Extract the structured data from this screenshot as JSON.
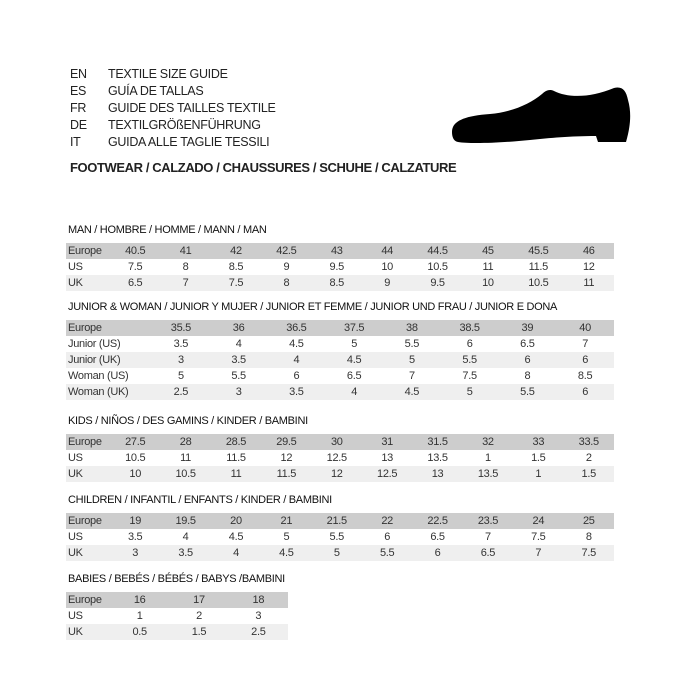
{
  "languages": [
    {
      "code": "EN",
      "title": "TEXTILE SIZE GUIDE"
    },
    {
      "code": "ES",
      "title": "GUÍA DE TALLAS"
    },
    {
      "code": "FR",
      "title": "GUIDE DES TAILLES TEXTILE"
    },
    {
      "code": "DE",
      "title": "TEXTILGRÖßENFÜHRUNG"
    },
    {
      "code": "IT",
      "title": "GUIDA ALLE TAGLIE TESSILI"
    }
  ],
  "subtitle": "FOOTWEAR / CALZADO / CHAUSSURES / SCHUHE / CALZATURE",
  "shoe_icon": "shoe-icon",
  "colors": {
    "header_row": "#cdcdcd",
    "alt_row": "#efefef"
  },
  "tables": [
    {
      "title": "MAN / HOMBRE / HOMME / MANN / MAN",
      "rows": [
        {
          "label": "Europe",
          "values": [
            "40.5",
            "41",
            "42",
            "42.5",
            "43",
            "44",
            "44.5",
            "45",
            "45.5",
            "46"
          ]
        },
        {
          "label": "US",
          "values": [
            "7.5",
            "8",
            "8.5",
            "9",
            "9.5",
            "10",
            "10.5",
            "11",
            "11.5",
            "12"
          ]
        },
        {
          "label": "UK",
          "values": [
            "6.5",
            "7",
            "7.5",
            "8",
            "8.5",
            "9",
            "9.5",
            "10",
            "10.5",
            "11"
          ]
        }
      ]
    },
    {
      "title": "JUNIOR & WOMAN / JUNIOR Y MUJER / JUNIOR ET FEMME / JUNIOR UND FRAU / JUNIOR E DONA",
      "rows": [
        {
          "label": "Europe",
          "values": [
            "35.5",
            "36",
            "36.5",
            "37.5",
            "38",
            "38.5",
            "39",
            "40"
          ]
        },
        {
          "label": "Junior (US)",
          "values": [
            "3.5",
            "4",
            "4.5",
            "5",
            "5.5",
            "6",
            "6.5",
            "7"
          ]
        },
        {
          "label": "Junior (UK)",
          "values": [
            "3",
            "3.5",
            "4",
            "4.5",
            "5",
            "5.5",
            "6",
            "6"
          ]
        },
        {
          "label": "Woman (US)",
          "values": [
            "5",
            "5.5",
            "6",
            "6.5",
            "7",
            "7.5",
            "8",
            "8.5"
          ]
        },
        {
          "label": "Woman (UK)",
          "values": [
            "2.5",
            "3",
            "3.5",
            "4",
            "4.5",
            "5",
            "5.5",
            "6"
          ]
        }
      ]
    },
    {
      "title": "KIDS / NIÑOS / DES GAMINS / KINDER / BAMBINI",
      "rows": [
        {
          "label": "Europe",
          "values": [
            "27.5",
            "28",
            "28.5",
            "29.5",
            "30",
            "31",
            "31.5",
            "32",
            "33",
            "33.5"
          ]
        },
        {
          "label": "US",
          "values": [
            "10.5",
            "11",
            "11.5",
            "12",
            "12.5",
            "13",
            "13.5",
            "1",
            "1.5",
            "2"
          ]
        },
        {
          "label": "UK",
          "values": [
            "10",
            "10.5",
            "11",
            "11.5",
            "12",
            "12.5",
            "13",
            "13.5",
            "1",
            "1.5"
          ]
        }
      ]
    },
    {
      "title": "CHILDREN / INFANTIL / ENFANTS / KINDER / BAMBINI",
      "rows": [
        {
          "label": "Europe",
          "values": [
            "19",
            "19.5",
            "20",
            "21",
            "21.5",
            "22",
            "22.5",
            "23.5",
            "24",
            "25"
          ]
        },
        {
          "label": "US",
          "values": [
            "3.5",
            "4",
            "4.5",
            "5",
            "5.5",
            "6",
            "6.5",
            "7",
            "7.5",
            "8"
          ]
        },
        {
          "label": "UK",
          "values": [
            "3",
            "3.5",
            "4",
            "4.5",
            "5",
            "5.5",
            "6",
            "6.5",
            "7",
            "7.5"
          ]
        }
      ]
    },
    {
      "title": "BABIES  / BEBÉS / BÉBÉS / BABYS /BAMBINI",
      "rows": [
        {
          "label": "Europe",
          "values": [
            "16",
            "17",
            "18"
          ]
        },
        {
          "label": "US",
          "values": [
            "1",
            "2",
            "3"
          ]
        },
        {
          "label": "UK",
          "values": [
            "0.5",
            "1.5",
            "2.5"
          ]
        }
      ]
    }
  ]
}
